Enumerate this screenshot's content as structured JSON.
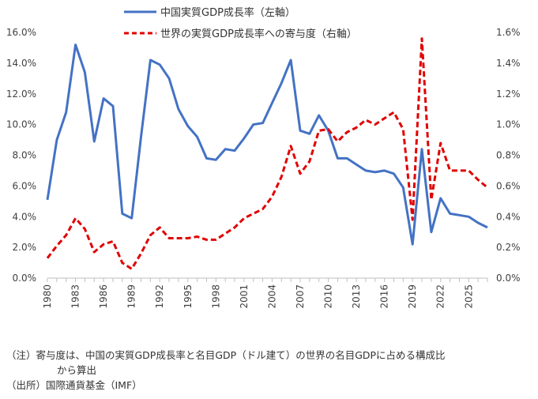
{
  "chart_data": {
    "type": "line",
    "title": "",
    "x": [
      1980,
      1981,
      1982,
      1983,
      1984,
      1985,
      1986,
      1987,
      1988,
      1989,
      1990,
      1991,
      1992,
      1993,
      1994,
      1995,
      1996,
      1997,
      1998,
      1999,
      2000,
      2001,
      2002,
      2003,
      2004,
      2005,
      2006,
      2007,
      2008,
      2009,
      2010,
      2011,
      2012,
      2013,
      2014,
      2015,
      2016,
      2017,
      2018,
      2019,
      2020,
      2021,
      2022,
      2023,
      2024,
      2025,
      2026,
      2027
    ],
    "x_ticks": [
      "1980",
      "1983",
      "1986",
      "1989",
      "1992",
      "1995",
      "1998",
      "2001",
      "2004",
      "2007",
      "2010",
      "2013",
      "2016",
      "2019",
      "2022",
      "2025"
    ],
    "series": [
      {
        "name": "中国実質GDP成長率（左軸）",
        "axis": "left",
        "color": "#4472C4",
        "style": "solid",
        "values": [
          5.1,
          9.0,
          10.8,
          15.2,
          13.4,
          8.9,
          11.7,
          11.2,
          4.2,
          3.9,
          9.2,
          14.2,
          13.9,
          13.0,
          11.0,
          9.9,
          9.2,
          7.8,
          7.7,
          8.4,
          8.3,
          9.1,
          10.0,
          10.1,
          11.4,
          12.7,
          14.2,
          9.6,
          9.4,
          10.6,
          9.6,
          7.8,
          7.8,
          7.4,
          7.0,
          6.9,
          7.0,
          6.8,
          5.9,
          2.2,
          8.4,
          3.0,
          5.2,
          4.2,
          4.1,
          4.0,
          3.6,
          3.3
        ]
      },
      {
        "name": "世界の実質GDP成長率への寄与度（右軸）",
        "axis": "right",
        "color": "#E00000",
        "style": "dashed",
        "values": [
          0.13,
          0.21,
          0.28,
          0.39,
          0.32,
          0.17,
          0.22,
          0.24,
          0.1,
          0.06,
          0.16,
          0.28,
          0.33,
          0.26,
          0.26,
          0.26,
          0.27,
          0.25,
          0.25,
          0.29,
          0.33,
          0.39,
          0.42,
          0.45,
          0.53,
          0.66,
          0.86,
          0.68,
          0.76,
          0.96,
          0.97,
          0.89,
          0.95,
          0.98,
          1.03,
          1.0,
          1.04,
          1.08,
          0.97,
          0.38,
          1.56,
          0.51,
          0.88,
          0.7,
          0.7,
          0.7,
          0.64,
          0.59
        ]
      }
    ],
    "y_left": {
      "min": 0,
      "max": 16,
      "ticks": [
        "0.0%",
        "2.0%",
        "4.0%",
        "6.0%",
        "8.0%",
        "10.0%",
        "12.0%",
        "14.0%",
        "16.0%"
      ]
    },
    "y_right": {
      "min": 0,
      "max": 1.6,
      "ticks": [
        "0.0%",
        "0.2%",
        "0.4%",
        "0.6%",
        "0.8%",
        "1.0%",
        "1.2%",
        "1.4%",
        "1.6%"
      ]
    },
    "legend_position": "top-center",
    "grid": false
  },
  "notes": {
    "note_line1": "（注）寄与度は、中国の実質GDP成長率と名目GDP（ドル建て）の世界の名目GDPに占める構成比",
    "note_line2": "から算出",
    "source": "（出所）国際通貨基金（IMF）"
  }
}
